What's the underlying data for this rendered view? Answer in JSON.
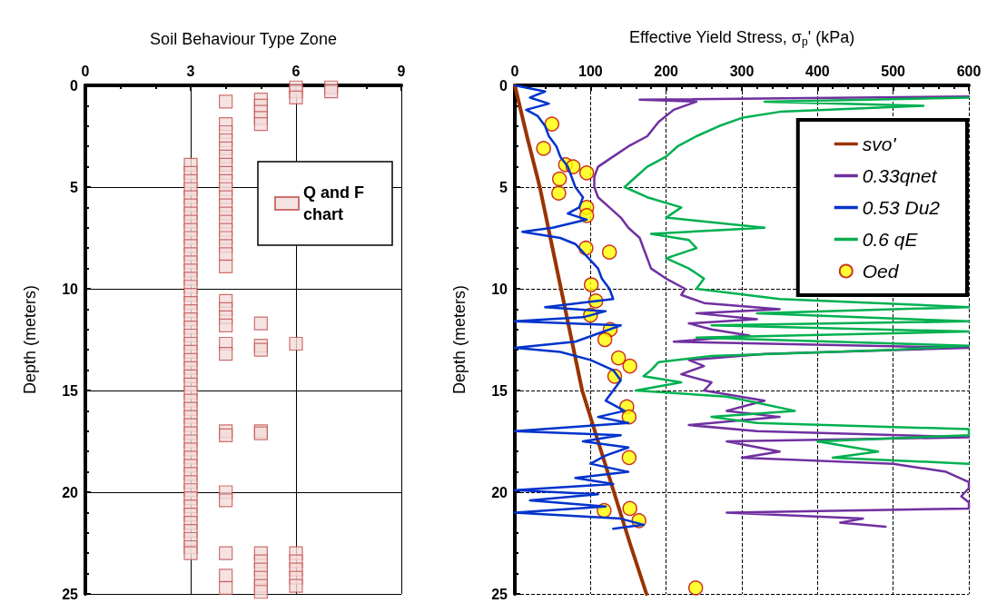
{
  "chart_data": [
    {
      "type": "scatter",
      "xlabel": "Soil Behaviour Type Zone",
      "ylabel": "Depth (meters)",
      "xlim": [
        0,
        9
      ],
      "xticks": [
        0,
        3,
        6,
        9
      ],
      "ylim": [
        25,
        0
      ],
      "yticks": [
        0,
        5,
        10,
        15,
        20,
        25
      ],
      "grid": true,
      "legend": "top right",
      "marker": "square",
      "series": [
        {
          "name": "Q and F chart",
          "color": "#c0504d",
          "x": [
            3,
            3,
            3,
            3,
            3,
            3,
            3,
            3,
            3,
            3,
            3,
            3,
            3,
            3,
            3,
            3,
            3,
            3,
            3,
            3,
            3,
            3,
            3,
            3,
            3,
            3,
            3,
            3,
            3,
            3,
            3,
            3,
            3,
            3,
            3,
            3,
            3,
            3,
            3,
            3,
            3,
            3,
            3,
            3,
            3,
            3,
            3,
            3,
            3,
            4,
            4,
            4,
            4,
            4,
            4,
            4,
            4,
            4,
            4,
            4,
            4,
            4,
            4,
            4,
            4,
            4,
            4,
            4,
            4,
            4,
            4,
            4,
            4,
            4,
            4,
            4,
            4,
            4,
            4,
            4,
            4,
            5,
            5,
            5,
            5,
            5,
            5,
            5,
            5,
            5,
            5,
            5,
            5,
            5,
            5,
            5,
            5,
            6,
            6,
            6,
            6,
            6,
            6,
            6,
            6,
            6,
            7,
            7
          ],
          "values": [
            3.9,
            4.3,
            4.7,
            5.1,
            5.5,
            5.9,
            6.3,
            6.7,
            7.1,
            7.5,
            7.9,
            8.3,
            8.7,
            9.1,
            9.5,
            9.9,
            10.3,
            10.7,
            11.1,
            11.5,
            11.9,
            12.3,
            12.7,
            13.1,
            13.5,
            13.9,
            14.3,
            14.7,
            15.1,
            15.5,
            15.9,
            16.3,
            16.7,
            17.1,
            17.5,
            17.9,
            18.3,
            18.7,
            19.1,
            19.5,
            19.9,
            20.3,
            20.7,
            21.1,
            21.5,
            21.9,
            22.3,
            22.7,
            23.0,
            0.8,
            1.9,
            2.3,
            2.7,
            3.1,
            3.5,
            3.9,
            4.3,
            4.7,
            5.1,
            5.5,
            5.9,
            6.3,
            6.7,
            7.1,
            7.5,
            7.9,
            8.3,
            8.9,
            10.6,
            11.0,
            11.4,
            11.8,
            12.7,
            13.2,
            17.0,
            17.2,
            20.0,
            20.4,
            23.0,
            24.1,
            24.7,
            0.7,
            1.0,
            1.3,
            1.6,
            1.9,
            11.7,
            12.8,
            13.0,
            17.0,
            17.1,
            23.0,
            23.4,
            23.8,
            24.2,
            24.6,
            24.9,
            0.1,
            0.3,
            0.6,
            12.7,
            23.0,
            23.4,
            23.8,
            24.2,
            24.6,
            0.1,
            0.3
          ]
        }
      ]
    },
    {
      "type": "line",
      "xlabel": "Effective Yield Stress, σ$_{p}$' (kPa)",
      "ylabel": "Depth (meters)",
      "xlim": [
        0,
        600
      ],
      "xticks": [
        0,
        100,
        200,
        300,
        400,
        500,
        600
      ],
      "ylim": [
        25,
        0
      ],
      "yticks": [
        0,
        5,
        10,
        15,
        20,
        25
      ],
      "grid": true,
      "legend": "top right",
      "series": [
        {
          "name": "svo'",
          "type": "line",
          "color": "#993300",
          "marker": "none",
          "line_style": "solid",
          "x": [
            0,
            16,
            33,
            47,
            61,
            75,
            89,
            110,
            131,
            152,
            174
          ],
          "values": [
            0,
            2.5,
            5,
            7.5,
            10,
            12.5,
            15,
            17.5,
            20,
            22.5,
            25
          ]
        },
        {
          "name": "0.33qnet",
          "type": "line",
          "color": "#7030a0",
          "marker": "none",
          "line_style": "solid",
          "x": [
            600,
            165,
            240,
            210,
            190,
            175,
            150,
            130,
            110,
            105,
            105,
            110,
            125,
            140,
            150,
            165,
            170,
            175,
            180,
            200,
            225,
            220,
            250,
            350,
            240,
            320,
            230,
            260,
            310,
            210,
            600,
            330,
            230,
            250,
            220,
            260,
            250,
            330,
            280,
            350,
            230,
            320,
            600,
            280,
            350,
            300,
            500,
            570,
            600,
            600,
            590,
            600,
            600,
            280,
            460,
            430,
            490
          ],
          "values": [
            0.55,
            0.7,
            0.8,
            1.2,
            1.8,
            2.5,
            3,
            3.5,
            4,
            4.5,
            5,
            5.5,
            6,
            6.5,
            7,
            7.5,
            8,
            8.5,
            9,
            9.5,
            10,
            10.3,
            10.7,
            11,
            11.2,
            11.5,
            11.7,
            12,
            12.3,
            12.6,
            12.9,
            13.2,
            13.5,
            13.8,
            14.2,
            14.6,
            15,
            15.5,
            16,
            16.3,
            16.7,
            17,
            17.3,
            17.5,
            18,
            18.3,
            18.6,
            19,
            19.5,
            19.8,
            20.2,
            20.5,
            20.8,
            21,
            21.3,
            21.5,
            21.7
          ]
        },
        {
          "name": "0.53 Du2",
          "type": "line",
          "color": "#0033cc",
          "marker": "none",
          "line_style": "solid",
          "x": [
            0,
            40,
            20,
            45,
            15,
            30,
            40,
            45,
            55,
            60,
            70,
            75,
            80,
            90,
            85,
            70,
            95,
            50,
            10,
            60,
            80,
            90,
            100,
            110,
            115,
            125,
            130,
            40,
            120,
            90,
            0,
            140,
            110,
            80,
            0,
            60,
            100,
            130,
            140,
            130,
            120,
            145,
            110,
            150,
            0,
            140,
            90,
            150,
            120,
            100,
            150,
            80,
            130,
            0,
            110,
            20,
            120,
            0,
            140,
            170,
            130
          ],
          "values": [
            0,
            0.3,
            0.6,
            0.9,
            1.2,
            1.5,
            2,
            2.5,
            3,
            3.5,
            4,
            4.5,
            5,
            5.5,
            6,
            6.3,
            6.6,
            7,
            7.2,
            7.5,
            7.8,
            8.2,
            8.6,
            9,
            9.5,
            10,
            10.5,
            10.9,
            11.1,
            11.4,
            11.6,
            11.8,
            12.2,
            12.6,
            12.9,
            13.1,
            13.5,
            14,
            14.5,
            15,
            15.5,
            16,
            16.3,
            16.6,
            17,
            17.2,
            17.5,
            17.8,
            18.2,
            18.6,
            19,
            19.3,
            19.6,
            19.9,
            20.1,
            20.4,
            20.7,
            21,
            21.3,
            21.6,
            21.8
          ]
        },
        {
          "name": "0.6 qE",
          "type": "line",
          "color": "#00b050",
          "marker": "none",
          "line_style": "solid",
          "x": [
            600,
            330,
            540,
            350,
            300,
            270,
            240,
            215,
            200,
            175,
            160,
            145,
            175,
            220,
            200,
            330,
            180,
            230,
            240,
            200,
            230,
            250,
            240,
            350,
            600,
            320,
            600,
            260,
            600,
            240,
            600,
            500,
            260,
            190,
            180,
            170,
            220,
            160,
            280,
            320,
            370,
            260,
            320,
            600,
            600,
            400,
            480,
            420,
            600
          ],
          "values": [
            0.6,
            0.8,
            1,
            1.3,
            1.6,
            2,
            2.5,
            3,
            3.5,
            4,
            4.5,
            5,
            5.5,
            6,
            6.5,
            7,
            7.3,
            7.6,
            8,
            8.5,
            9,
            9.5,
            10,
            10.5,
            10.9,
            11.2,
            11.6,
            11.8,
            12.1,
            12.4,
            12.8,
            13,
            13.3,
            13.6,
            14,
            14.3,
            14.6,
            15,
            15.3,
            15.6,
            16,
            16.3,
            16.6,
            16.9,
            17.2,
            17.5,
            18,
            18.3,
            18.6
          ]
        },
        {
          "name": "Oed",
          "type": "scatter",
          "color": "#ffff00",
          "marker": "circle",
          "x": [
            49,
            38,
            67,
            77,
            95,
            59,
            58,
            95,
            95,
            94,
            125,
            101,
            107,
            100,
            126,
            119,
            137,
            152,
            132,
            148,
            151,
            151,
            118,
            152,
            164,
            239
          ],
          "values": [
            1.9,
            3.1,
            3.9,
            4.0,
            4.3,
            4.6,
            5.3,
            6.0,
            6.4,
            8.0,
            8.2,
            9.8,
            10.6,
            11.3,
            12.0,
            12.5,
            13.4,
            13.8,
            14.3,
            15.8,
            16.3,
            18.3,
            20.9,
            20.8,
            21.4,
            24.7
          ]
        }
      ]
    }
  ]
}
